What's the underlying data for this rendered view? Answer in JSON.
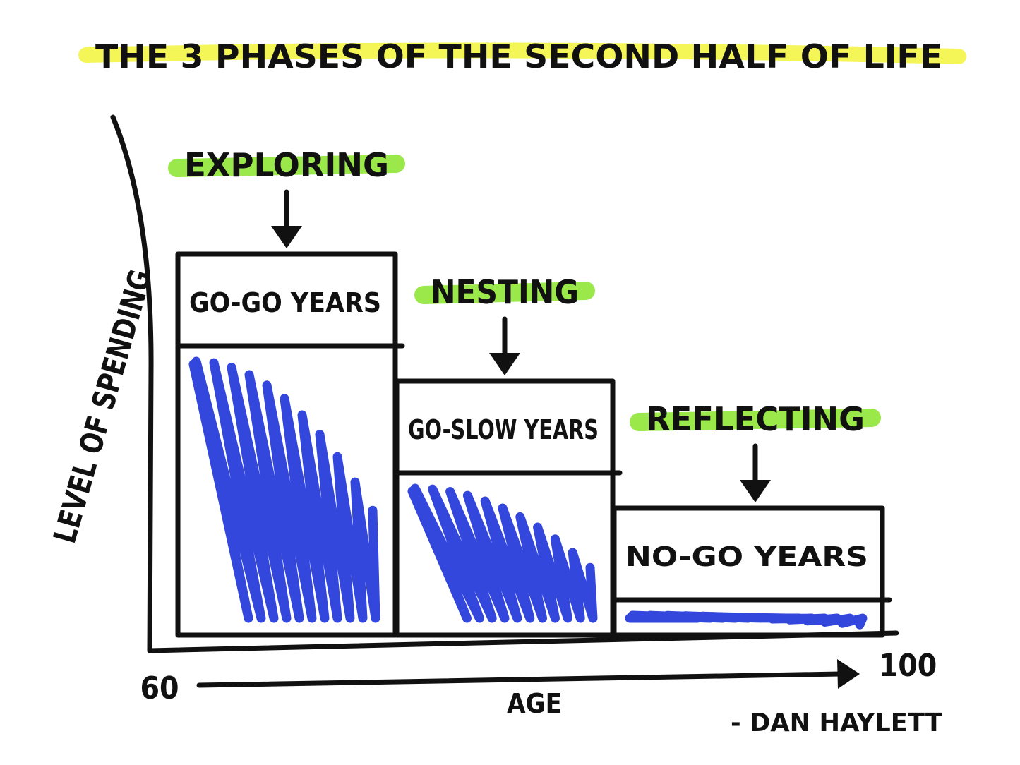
{
  "chart_data": {
    "type": "bar",
    "title": "THE 3 PHASES OF THE SECOND HALF OF LIFE",
    "xlabel": "AGE",
    "ylabel": "LEVEL OF SPENDING",
    "x_start_label": "60",
    "x_end_label": "100",
    "signature": "- DAN HAYLETT",
    "categories": [
      "GO-GO YEARS",
      "GO-SLOW YEARS",
      "NO-GO YEARS"
    ],
    "phases": [
      "EXPLORING",
      "NESTING",
      "REFLECTING"
    ],
    "values": [
      3,
      2,
      1
    ],
    "grid": false,
    "colors": {
      "title_highlight": "#f3f545",
      "phase_highlight": "#9be84a",
      "scribble": "#3347dd",
      "ink": "#111111"
    }
  }
}
